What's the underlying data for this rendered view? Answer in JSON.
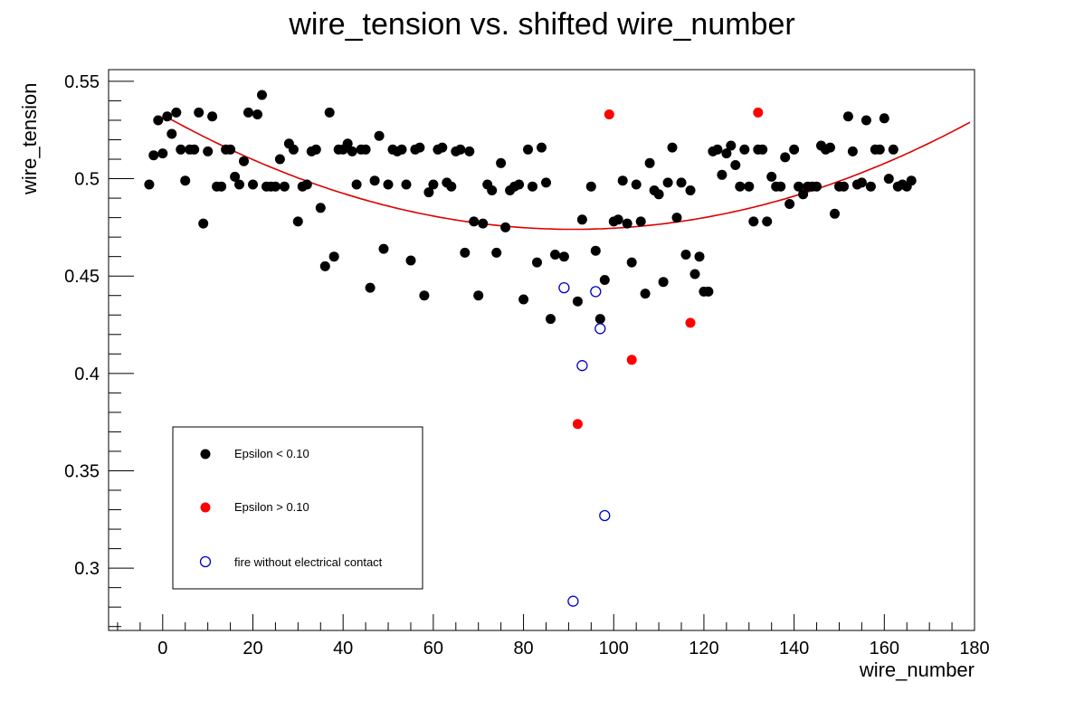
{
  "chart_data": {
    "type": "scatter",
    "title": "wire_tension vs. shifted wire_number",
    "xlabel": "wire_number",
    "ylabel": "wire_tension",
    "xlim": [
      -12,
      180
    ],
    "ylim": [
      0.268,
      0.556
    ],
    "x_ticks": [
      0,
      20,
      40,
      60,
      80,
      100,
      120,
      140,
      160,
      180
    ],
    "x_tick_labels": [
      "0",
      "20",
      "40",
      "60",
      "80",
      "100",
      "120",
      "140",
      "160",
      "180"
    ],
    "y_ticks": [
      0.3,
      0.35,
      0.4,
      0.45,
      0.5,
      0.55
    ],
    "y_tick_labels": [
      "0.3",
      "0.35",
      "0.4",
      "0.45",
      "0.5",
      "0.55"
    ],
    "legend_position": "bottom-left",
    "series": [
      {
        "name": "Epsilon < 0.10",
        "marker": "filled-circle",
        "color": "#000000",
        "points": [
          [
            -3,
            0.497
          ],
          [
            -2,
            0.512
          ],
          [
            -1,
            0.53
          ],
          [
            0,
            0.513
          ],
          [
            1,
            0.532
          ],
          [
            2,
            0.523
          ],
          [
            3,
            0.534
          ],
          [
            4,
            0.515
          ],
          [
            5,
            0.499
          ],
          [
            6,
            0.515
          ],
          [
            7,
            0.515
          ],
          [
            8,
            0.534
          ],
          [
            9,
            0.477
          ],
          [
            10,
            0.514
          ],
          [
            11,
            0.532
          ],
          [
            12,
            0.496
          ],
          [
            13,
            0.496
          ],
          [
            14,
            0.515
          ],
          [
            15,
            0.515
          ],
          [
            16,
            0.501
          ],
          [
            17,
            0.497
          ],
          [
            18,
            0.509
          ],
          [
            19,
            0.534
          ],
          [
            20,
            0.497
          ],
          [
            21,
            0.533
          ],
          [
            22,
            0.543
          ],
          [
            23,
            0.496
          ],
          [
            24,
            0.496
          ],
          [
            25,
            0.496
          ],
          [
            26,
            0.51
          ],
          [
            27,
            0.496
          ],
          [
            28,
            0.518
          ],
          [
            29,
            0.515
          ],
          [
            30,
            0.478
          ],
          [
            31,
            0.496
          ],
          [
            32,
            0.497
          ],
          [
            33,
            0.514
          ],
          [
            34,
            0.515
          ],
          [
            35,
            0.485
          ],
          [
            36,
            0.455
          ],
          [
            37,
            0.534
          ],
          [
            38,
            0.46
          ],
          [
            39,
            0.515
          ],
          [
            40,
            0.515
          ],
          [
            41,
            0.518
          ],
          [
            42,
            0.514
          ],
          [
            43,
            0.497
          ],
          [
            44,
            0.515
          ],
          [
            45,
            0.515
          ],
          [
            46,
            0.444
          ],
          [
            47,
            0.499
          ],
          [
            48,
            0.522
          ],
          [
            49,
            0.464
          ],
          [
            50,
            0.497
          ],
          [
            51,
            0.515
          ],
          [
            52,
            0.514
          ],
          [
            53,
            0.515
          ],
          [
            54,
            0.497
          ],
          [
            55,
            0.458
          ],
          [
            56,
            0.515
          ],
          [
            57,
            0.516
          ],
          [
            58,
            0.44
          ],
          [
            59,
            0.493
          ],
          [
            60,
            0.497
          ],
          [
            61,
            0.515
          ],
          [
            62,
            0.516
          ],
          [
            63,
            0.498
          ],
          [
            64,
            0.496
          ],
          [
            65,
            0.514
          ],
          [
            66,
            0.515
          ],
          [
            67,
            0.462
          ],
          [
            68,
            0.514
          ],
          [
            69,
            0.478
          ],
          [
            70,
            0.44
          ],
          [
            71,
            0.477
          ],
          [
            72,
            0.497
          ],
          [
            73,
            0.494
          ],
          [
            74,
            0.462
          ],
          [
            75,
            0.508
          ],
          [
            76,
            0.475
          ],
          [
            77,
            0.494
          ],
          [
            78,
            0.496
          ],
          [
            79,
            0.497
          ],
          [
            80,
            0.438
          ],
          [
            81,
            0.515
          ],
          [
            82,
            0.496
          ],
          [
            83,
            0.457
          ],
          [
            84,
            0.516
          ],
          [
            85,
            0.498
          ],
          [
            86,
            0.428
          ],
          [
            87,
            0.461
          ],
          [
            89,
            0.46
          ],
          [
            92,
            0.437
          ],
          [
            93,
            0.479
          ],
          [
            95,
            0.496
          ],
          [
            96,
            0.463
          ],
          [
            97,
            0.428
          ],
          [
            98,
            0.448
          ],
          [
            100,
            0.478
          ],
          [
            101,
            0.479
          ],
          [
            102,
            0.499
          ],
          [
            103,
            0.477
          ],
          [
            104,
            0.457
          ],
          [
            105,
            0.497
          ],
          [
            106,
            0.478
          ],
          [
            107,
            0.441
          ],
          [
            108,
            0.508
          ],
          [
            109,
            0.494
          ],
          [
            110,
            0.492
          ],
          [
            111,
            0.447
          ],
          [
            112,
            0.498
          ],
          [
            113,
            0.516
          ],
          [
            114,
            0.48
          ],
          [
            115,
            0.498
          ],
          [
            116,
            0.461
          ],
          [
            117,
            0.494
          ],
          [
            118,
            0.451
          ],
          [
            119,
            0.46
          ],
          [
            120,
            0.442
          ],
          [
            121,
            0.442
          ],
          [
            122,
            0.514
          ],
          [
            123,
            0.515
          ],
          [
            124,
            0.502
          ],
          [
            125,
            0.513
          ],
          [
            126,
            0.517
          ],
          [
            127,
            0.507
          ],
          [
            128,
            0.496
          ],
          [
            129,
            0.515
          ],
          [
            130,
            0.496
          ],
          [
            131,
            0.478
          ],
          [
            132,
            0.515
          ],
          [
            133,
            0.515
          ],
          [
            134,
            0.478
          ],
          [
            135,
            0.501
          ],
          [
            136,
            0.496
          ],
          [
            137,
            0.496
          ],
          [
            138,
            0.511
          ],
          [
            139,
            0.487
          ],
          [
            140,
            0.515
          ],
          [
            141,
            0.496
          ],
          [
            142,
            0.492
          ],
          [
            143,
            0.496
          ],
          [
            144,
            0.496
          ],
          [
            145,
            0.496
          ],
          [
            146,
            0.517
          ],
          [
            147,
            0.515
          ],
          [
            148,
            0.516
          ],
          [
            149,
            0.482
          ],
          [
            150,
            0.496
          ],
          [
            151,
            0.496
          ],
          [
            152,
            0.532
          ],
          [
            153,
            0.514
          ],
          [
            154,
            0.497
          ],
          [
            155,
            0.498
          ],
          [
            156,
            0.53
          ],
          [
            157,
            0.496
          ],
          [
            158,
            0.515
          ],
          [
            159,
            0.515
          ],
          [
            160,
            0.531
          ],
          [
            161,
            0.5
          ],
          [
            162,
            0.515
          ],
          [
            163,
            0.496
          ],
          [
            164,
            0.497
          ],
          [
            165,
            0.496
          ],
          [
            166,
            0.499
          ]
        ]
      },
      {
        "name": "Epsilon > 0.10",
        "marker": "filled-circle",
        "color": "#ff0000",
        "points": [
          [
            92,
            0.374
          ],
          [
            99,
            0.533
          ],
          [
            104,
            0.407
          ],
          [
            117,
            0.426
          ],
          [
            132,
            0.534
          ]
        ]
      },
      {
        "name": "fire without electrical contact",
        "marker": "open-circle",
        "color": "#0000cc",
        "points": [
          [
            89,
            0.444
          ],
          [
            91,
            0.283
          ],
          [
            93,
            0.404
          ],
          [
            96,
            0.442
          ],
          [
            97,
            0.423
          ],
          [
            98,
            0.327
          ]
        ]
      }
    ],
    "fit": {
      "name": "quadratic fit",
      "color": "#dd0000",
      "x_range": [
        0,
        179
      ],
      "vertex_x": 91,
      "vertex_y": 0.474,
      "curvature": 7.1e-06
    }
  }
}
